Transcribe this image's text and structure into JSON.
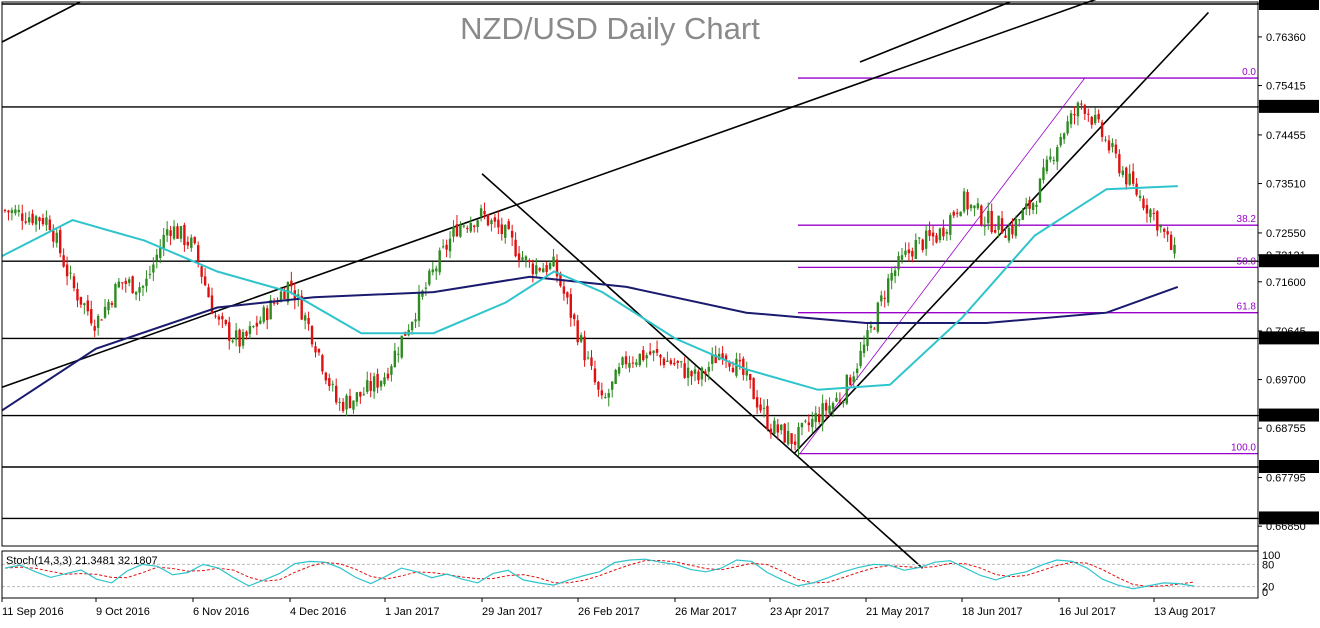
{
  "chart_data": {
    "type": "candlestick",
    "title": "NZD/USD Daily Chart",
    "colors": {
      "up": "#2e8b22",
      "down": "#e01010",
      "ma_fast": "#2ec4cc",
      "ma_slow": "#1a1a6e",
      "fib": "#9900cc",
      "stoch_main": "#2ec4cc",
      "stoch_signal": "#e01010"
    },
    "price_ticks": [
      "0.77000",
      "0.76360",
      "0.75415",
      "0.75000",
      "0.74455",
      "0.73510",
      "0.72550",
      "0.72121",
      "0.72000",
      "0.71600",
      "0.70645",
      "0.70500",
      "0.69700",
      "0.69000",
      "0.68755",
      "0.68000",
      "0.67795",
      "0.67000",
      "0.66850"
    ],
    "highlighted_levels": [
      "0.77000",
      "0.75000",
      "0.72000",
      "0.70500",
      "0.69000",
      "0.68000",
      "0.67000"
    ],
    "ylim": [
      0.666,
      0.77
    ],
    "date_ticks": [
      "11 Sep 2016",
      "9 Oct 2016",
      "6 Nov 2016",
      "4 Dec 2016",
      "1 Jan 2017",
      "29 Jan 2017",
      "26 Feb 2017",
      "26 Mar 2017",
      "23 Apr 2017",
      "21 May 2017",
      "18 Jun 2017",
      "16 Jul 2017",
      "13 Aug 2017"
    ],
    "horizontal_levels": [
      0.77,
      0.75,
      0.72,
      0.705,
      0.69,
      0.68,
      0.67
    ],
    "fibonacci": {
      "levels": [
        {
          "label": "0.0",
          "price": 0.7556
        },
        {
          "label": "38.2",
          "price": 0.727
        },
        {
          "label": "50.0",
          "price": 0.7188
        },
        {
          "label": "61.8",
          "price": 0.71
        },
        {
          "label": "100.0",
          "price": 0.6826
        }
      ]
    },
    "close_points": [
      [
        "11 Sep 2016",
        0.73
      ],
      [
        "18 Sep 2016",
        0.729
      ],
      [
        "25 Sep 2016",
        0.728
      ],
      [
        "2 Oct 2016",
        0.715
      ],
      [
        "9 Oct 2016",
        0.708
      ],
      [
        "16 Oct 2016",
        0.716
      ],
      [
        "23 Oct 2016",
        0.715
      ],
      [
        "30 Oct 2016",
        0.727
      ],
      [
        "6 Nov 2016",
        0.723
      ],
      [
        "13 Nov 2016",
        0.708
      ],
      [
        "20 Nov 2016",
        0.704
      ],
      [
        "27 Nov 2016",
        0.71
      ],
      [
        "4 Dec 2016",
        0.716
      ],
      [
        "11 Dec 2016",
        0.705
      ],
      [
        "18 Dec 2016",
        0.692
      ],
      [
        "25 Dec 2016",
        0.694
      ],
      [
        "1 Jan 2017",
        0.698
      ],
      [
        "8 Jan 2017",
        0.708
      ],
      [
        "15 Jan 2017",
        0.718
      ],
      [
        "22 Jan 2017",
        0.727
      ],
      [
        "29 Jan 2017",
        0.729
      ],
      [
        "5 Feb 2017",
        0.725
      ],
      [
        "12 Feb 2017",
        0.719
      ],
      [
        "19 Feb 2017",
        0.719
      ],
      [
        "26 Feb 2017",
        0.706
      ],
      [
        "5 Mar 2017",
        0.692
      ],
      [
        "12 Mar 2017",
        0.701
      ],
      [
        "19 Mar 2017",
        0.702
      ],
      [
        "26 Mar 2017",
        0.7
      ],
      [
        "2 Apr 2017",
        0.697
      ],
      [
        "9 Apr 2017",
        0.703
      ],
      [
        "16 Apr 2017",
        0.697
      ],
      [
        "23 Apr 2017",
        0.688
      ],
      [
        "30 Apr 2017",
        0.685
      ],
      [
        "7 May 2017",
        0.69
      ],
      [
        "14 May 2017",
        0.694
      ],
      [
        "21 May 2017",
        0.704
      ],
      [
        "28 May 2017",
        0.717
      ],
      [
        "4 Jun 2017",
        0.723
      ],
      [
        "11 Jun 2017",
        0.725
      ],
      [
        "18 Jun 2017",
        0.732
      ],
      [
        "25 Jun 2017",
        0.728
      ],
      [
        "2 Jul 2017",
        0.726
      ],
      [
        "9 Jul 2017",
        0.732
      ],
      [
        "16 Jul 2017",
        0.744
      ],
      [
        "23 Jul 2017",
        0.751
      ],
      [
        "30 Jul 2017",
        0.743
      ],
      [
        "6 Aug 2017",
        0.735
      ],
      [
        "13 Aug 2017",
        0.729
      ],
      [
        "20 Aug 2017",
        0.72
      ]
    ],
    "ma_fast": [
      [
        "11 Sep 2016",
        0.721
      ],
      [
        "2 Oct 2016",
        0.728
      ],
      [
        "23 Oct 2016",
        0.724
      ],
      [
        "13 Nov 2016",
        0.718
      ],
      [
        "4 Dec 2016",
        0.714
      ],
      [
        "25 Dec 2016",
        0.706
      ],
      [
        "15 Jan 2017",
        0.706
      ],
      [
        "5 Feb 2017",
        0.712
      ],
      [
        "19 Feb 2017",
        0.718
      ],
      [
        "5 Mar 2017",
        0.714
      ],
      [
        "26 Mar 2017",
        0.705
      ],
      [
        "16 Apr 2017",
        0.699
      ],
      [
        "7 May 2017",
        0.695
      ],
      [
        "28 May 2017",
        0.696
      ],
      [
        "18 Jun 2017",
        0.709
      ],
      [
        "9 Jul 2017",
        0.725
      ],
      [
        "30 Jul 2017",
        0.734
      ],
      [
        "20 Aug 2017",
        0.7346
      ]
    ],
    "ma_slow": [
      [
        "11 Sep 2016",
        0.691
      ],
      [
        "9 Oct 2016",
        0.703
      ],
      [
        "13 Nov 2016",
        0.711
      ],
      [
        "11 Dec 2016",
        0.713
      ],
      [
        "15 Jan 2017",
        0.714
      ],
      [
        "12 Feb 2017",
        0.717
      ],
      [
        "12 Mar 2017",
        0.715
      ],
      [
        "16 Apr 2017",
        0.71
      ],
      [
        "21 May 2017",
        0.708
      ],
      [
        "25 Jun 2017",
        0.708
      ],
      [
        "30 Jul 2017",
        0.71
      ],
      [
        "20 Aug 2017",
        0.715
      ]
    ],
    "trendlines": [
      {
        "from": [
          "11 Sep 2016",
          0.6955
        ],
        "to": [
          "23 Jul 2017",
          0.77
        ]
      },
      {
        "from": [
          "29 Jan 2017",
          0.737
        ],
        "to": [
          "28 May 2017",
          0.666
        ]
      },
      {
        "from": [
          "30 Apr 2017",
          0.6826
        ],
        "to": [
          "20 Aug 2017",
          0.762
        ]
      }
    ],
    "stochastic": {
      "label": "Stoch(14,3,3) 21.3481 32.1807",
      "main_value": 21.3481,
      "signal_value": 32.1807,
      "levels": [
        "80",
        "20"
      ],
      "scale": [
        "100",
        "0"
      ],
      "main": [
        70,
        78,
        60,
        45,
        55,
        65,
        40,
        30,
        62,
        80,
        75,
        52,
        58,
        80,
        70,
        44,
        22,
        38,
        55,
        82,
        88,
        86,
        70,
        45,
        28,
        48,
        70,
        60,
        44,
        54,
        40,
        30,
        55,
        64,
        38,
        30,
        24,
        38,
        50,
        60,
        85,
        92,
        94,
        86,
        80,
        66,
        60,
        70,
        92,
        88,
        58,
        38,
        22,
        30,
        44,
        60,
        72,
        80,
        78,
        64,
        72,
        86,
        90,
        70,
        50,
        38,
        52,
        60,
        78,
        92,
        88,
        70,
        40,
        24,
        14,
        22,
        30,
        28,
        21
      ]
    }
  }
}
